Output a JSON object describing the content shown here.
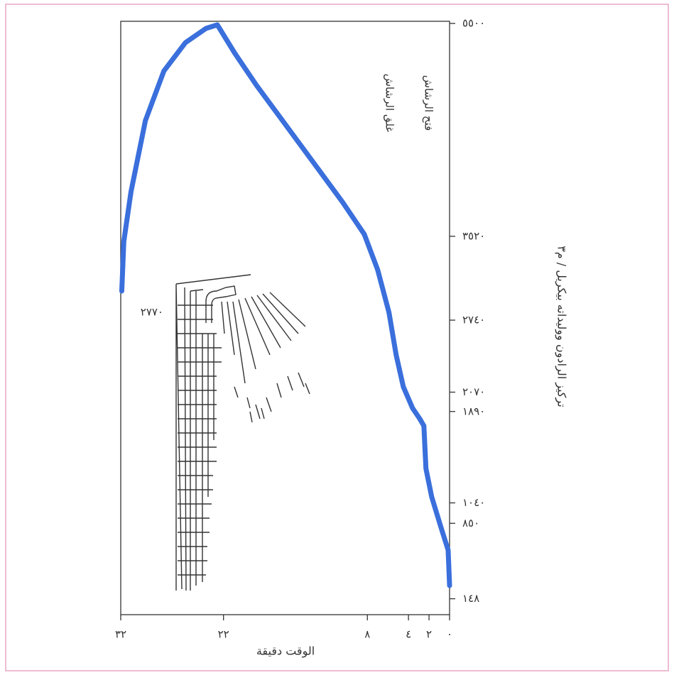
{
  "chart_data": {
    "type": "line",
    "x_label": "الوقت دقيقة",
    "y_label": "تركيز الرادون ووليداته بيكريل / م٣",
    "annotations": [
      "٢٧٧٠",
      "غلق الرشاش",
      "فتح الرشاش"
    ],
    "x": [
      0,
      0.14,
      0.9,
      1.74,
      2.3,
      2.5,
      2.9,
      3.6,
      4.5,
      5.2,
      5.9,
      7.0,
      8.3,
      10.4,
      13.2,
      16.0,
      18.8,
      20.9,
      22.6,
      23.7,
      25.7,
      27.8,
      29.6,
      31.0,
      31.7,
      31.9
    ],
    "series": [
      {
        "color": "#3a6fdc",
        "values": [
          271,
          601,
          832,
          1096,
          1360,
          1756,
          1822,
          1921,
          2120,
          2417,
          2813,
          3209,
          3539,
          3836,
          4200,
          4563,
          4926,
          5223,
          5487,
          5454,
          5322,
          5058,
          4596,
          3935,
          3473,
          3011
        ]
      }
    ],
    "xlim": [
      32,
      0
    ],
    "xticks": [
      {
        "value": 32,
        "label": "٣٢"
      },
      {
        "value": 22,
        "label": "٢٢"
      },
      {
        "value": 8,
        "label": "٨"
      },
      {
        "value": 4,
        "label": "٤"
      },
      {
        "value": 2,
        "label": "٢"
      },
      {
        "value": 0,
        "label": "٠"
      }
    ],
    "ylim": [
      0,
      5520
    ],
    "yticks": [
      {
        "value": 5500,
        "label": "٥٥٠٠"
      },
      {
        "value": 3520,
        "label": "٣٥٢٠"
      },
      {
        "value": 2740,
        "label": "٢٧٤٠"
      },
      {
        "value": 2070,
        "label": "٢٠٧٠"
      },
      {
        "value": 1890,
        "label": "١٨٩٠"
      },
      {
        "value": 1040,
        "label": "١٠٤٠"
      },
      {
        "value": 850,
        "label": "٨٥٠"
      },
      {
        "value": 148,
        "label": "١٤٨"
      }
    ],
    "y_axis_side": "right"
  }
}
